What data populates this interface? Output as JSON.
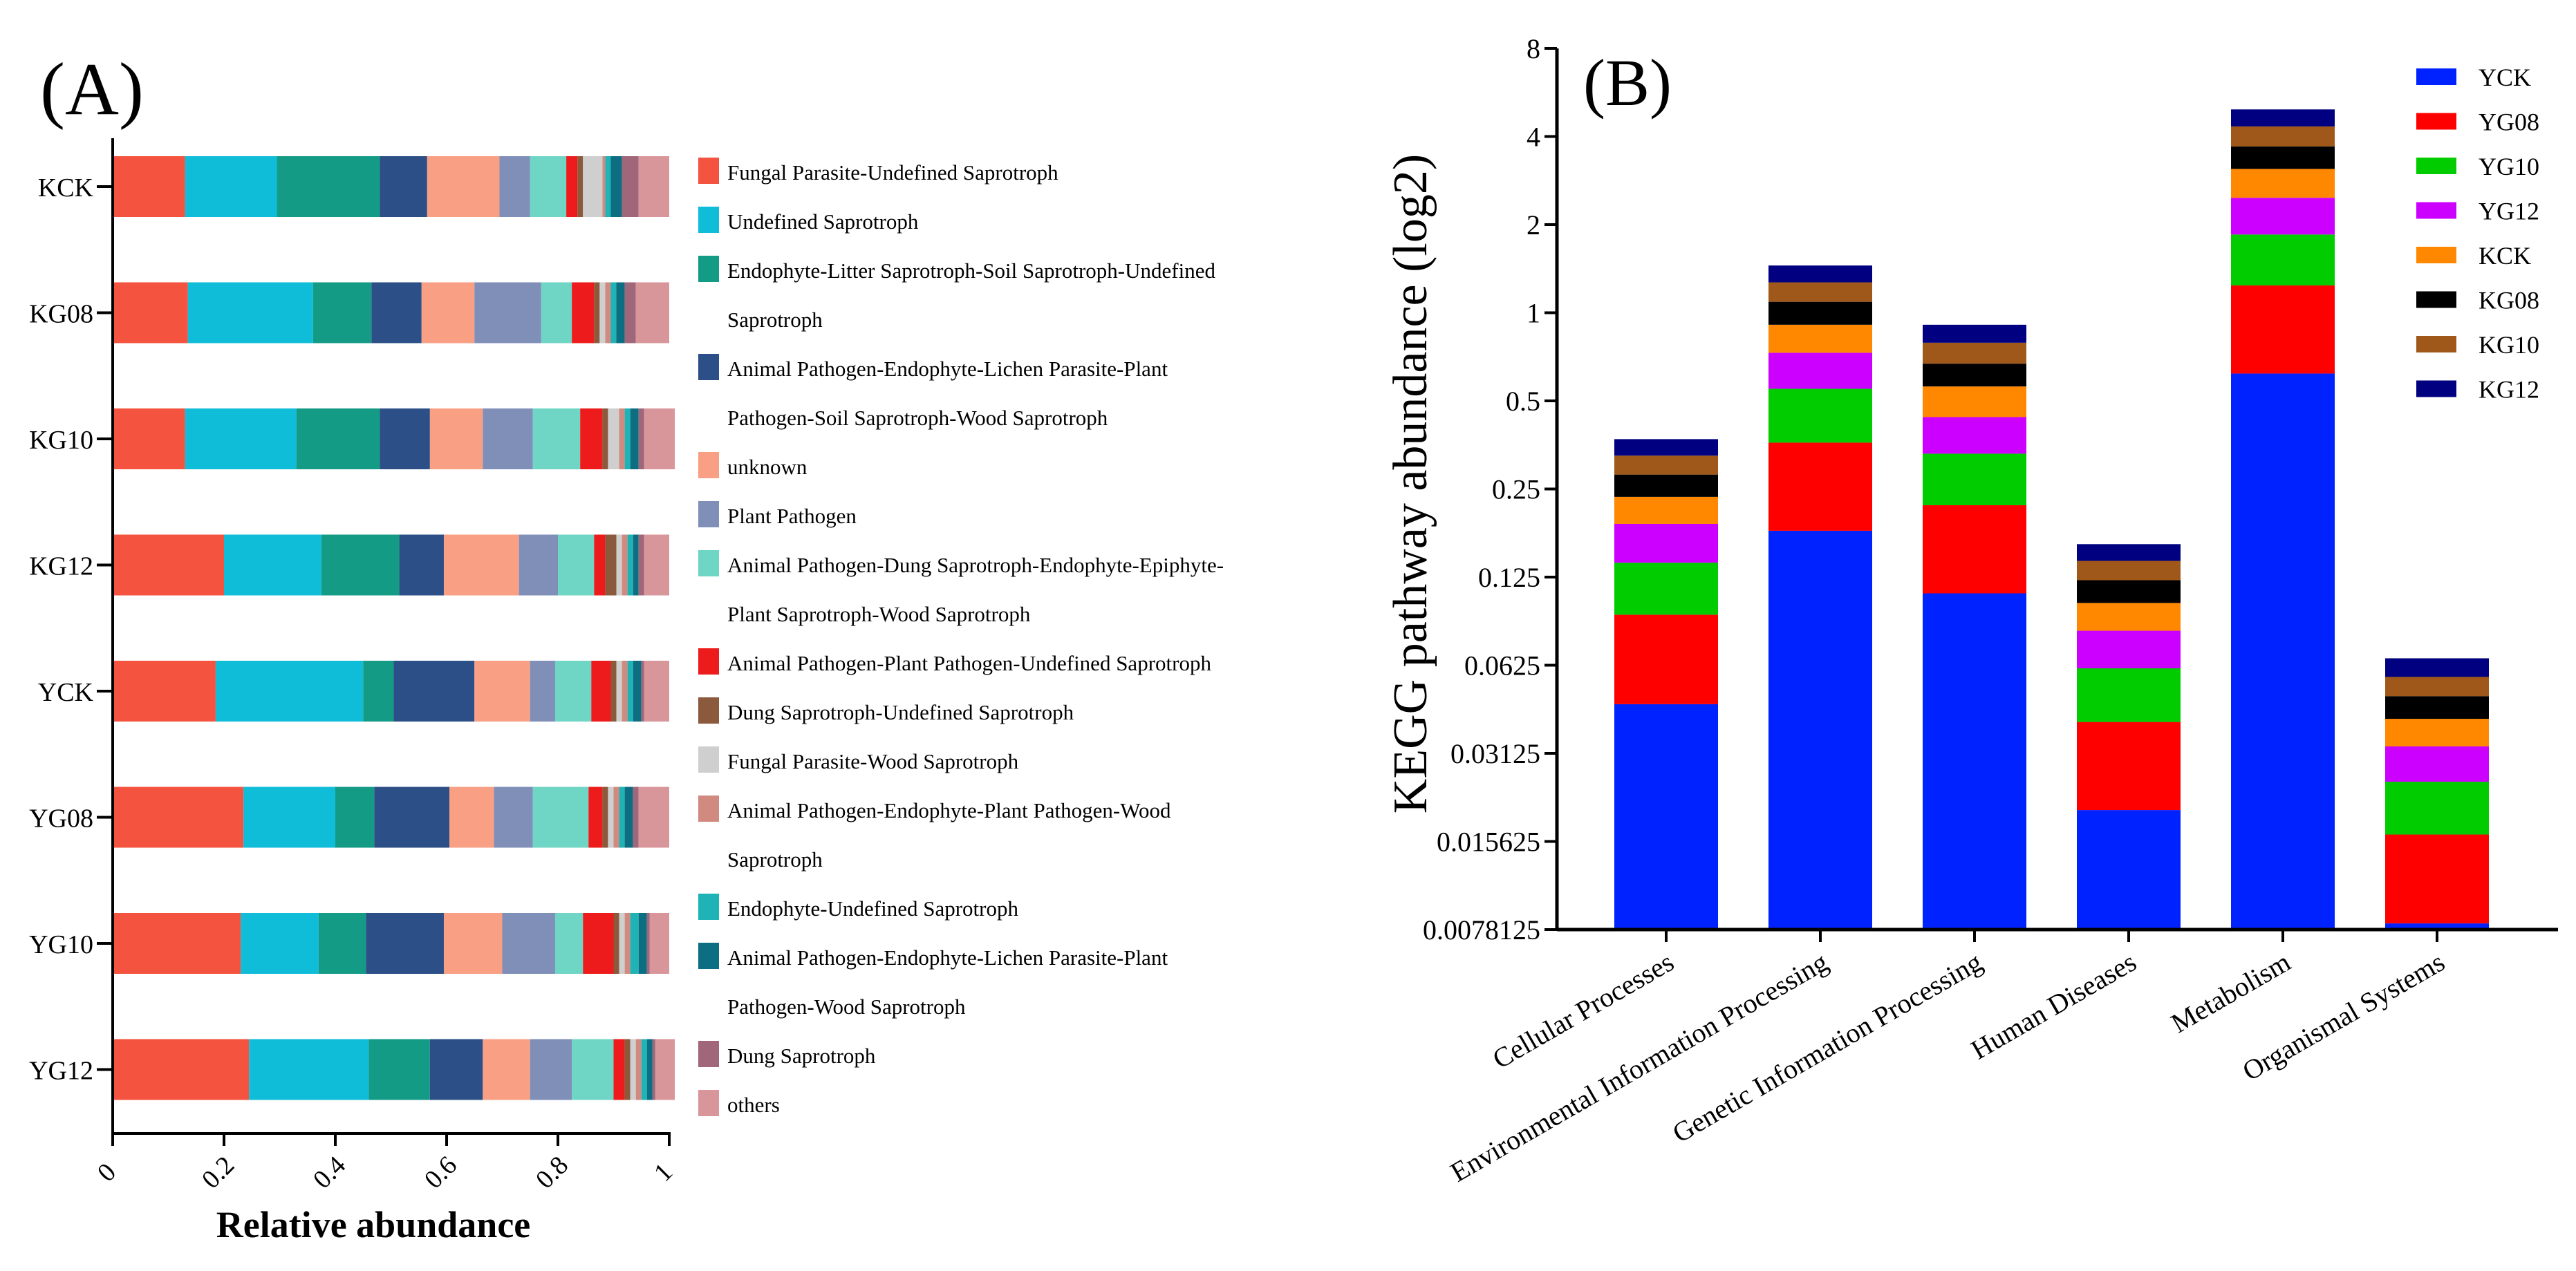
{
  "colors": {
    "text": "#000000",
    "axis": "#000000",
    "guilds": [
      "#f3533f",
      "#10bdd9",
      "#139b86",
      "#2b4f86",
      "#f89f84",
      "#7f8fb8",
      "#6fd5c5",
      "#ed1b1b",
      "#8b5a3c",
      "#cfcfcf",
      "#d18a80",
      "#1fb3b6",
      "#0d6e82",
      "#a0667a",
      "#d9969a"
    ],
    "samples": [
      "#0022ff",
      "#ff0000",
      "#00cc00",
      "#cc00ff",
      "#ff8800",
      "#000000",
      "#a0581a",
      "#000080"
    ]
  },
  "chart_data": [
    {
      "panel_label": "(A)",
      "type": "bar",
      "orientation": "horizontal",
      "stacked": true,
      "xlabel": "Relative abundance",
      "xlim": [
        0,
        1
      ],
      "xticks": [
        "0",
        "0.2",
        "0.4",
        "0.6",
        "0.8",
        "1"
      ],
      "xtick_values": [
        0,
        0.2,
        0.4,
        0.6,
        0.8,
        1.0
      ],
      "categories": [
        "KCK",
        "KG08",
        "KG10",
        "KG12",
        "YCK",
        "YG08",
        "YG10",
        "YG12"
      ],
      "legend_position": "right",
      "legend_lines": [
        [
          "Fungal Parasite-Undefined Saprotroph"
        ],
        [
          "Undefined Saprotroph"
        ],
        [
          "Endophyte-Litter Saprotroph-Soil Saprotroph-Undefined",
          "Saprotroph"
        ],
        [
          "Animal Pathogen-Endophyte-Lichen Parasite-Plant",
          "Pathogen-Soil Saprotroph-Wood Saprotroph"
        ],
        [
          "unknown"
        ],
        [
          "Plant Pathogen"
        ],
        [
          "Animal Pathogen-Dung Saprotroph-Endophyte-Epiphyte-",
          "Plant Saprotroph-Wood Saprotroph"
        ],
        [
          "Animal Pathogen-Plant Pathogen-Undefined Saprotroph"
        ],
        [
          "Dung Saprotroph-Undefined Saprotroph"
        ],
        [
          "Fungal Parasite-Wood Saprotroph"
        ],
        [
          "Animal Pathogen-Endophyte-Plant Pathogen-Wood",
          "Saprotroph"
        ],
        [
          "Endophyte-Undefined Saprotroph"
        ],
        [
          "Animal Pathogen-Endophyte-Lichen Parasite-Plant",
          "Pathogen-Wood Saprotroph"
        ],
        [
          "Dung Saprotroph"
        ],
        [
          "others"
        ]
      ],
      "values": [
        [
          0.13,
          0.165,
          0.185,
          0.085,
          0.13,
          0.055,
          0.065,
          0.02,
          0.01,
          0.035,
          0.005,
          0.01,
          0.02,
          0.03,
          0.055
        ],
        [
          0.135,
          0.225,
          0.105,
          0.09,
          0.095,
          0.12,
          0.055,
          0.04,
          0.01,
          0.01,
          0.01,
          0.01,
          0.015,
          0.02,
          0.06
        ],
        [
          0.13,
          0.2,
          0.15,
          0.09,
          0.095,
          0.09,
          0.085,
          0.04,
          0.01,
          0.02,
          0.01,
          0.01,
          0.015,
          0.01,
          0.055
        ],
        [
          0.2,
          0.175,
          0.14,
          0.08,
          0.135,
          0.07,
          0.065,
          0.02,
          0.02,
          0.01,
          0.01,
          0.01,
          0.01,
          0.01,
          0.045
        ],
        [
          0.185,
          0.265,
          0.055,
          0.145,
          0.1,
          0.045,
          0.065,
          0.035,
          0.01,
          0.01,
          0.01,
          0.01,
          0.015,
          0.005,
          0.045
        ],
        [
          0.235,
          0.165,
          0.07,
          0.135,
          0.08,
          0.07,
          0.1,
          0.025,
          0.01,
          0.01,
          0.01,
          0.01,
          0.015,
          0.01,
          0.055
        ],
        [
          0.23,
          0.14,
          0.085,
          0.14,
          0.105,
          0.095,
          0.05,
          0.055,
          0.01,
          0.01,
          0.01,
          0.015,
          0.015,
          0.005,
          0.035
        ],
        [
          0.245,
          0.215,
          0.11,
          0.095,
          0.085,
          0.075,
          0.075,
          0.02,
          0.01,
          0.01,
          0.01,
          0.01,
          0.01,
          0.005,
          0.035
        ]
      ]
    },
    {
      "panel_label": "(B)",
      "type": "bar",
      "orientation": "vertical",
      "stacked": true,
      "yscale": "log2",
      "ylabel": "KEGG pathway abundance (log2)",
      "ylim": [
        0.0078125,
        8
      ],
      "yticks": [
        "0.0078125",
        "0.015625",
        "0.03125",
        "0.0625",
        "0.125",
        "0.25",
        "0.5",
        "1",
        "2",
        "4",
        "8"
      ],
      "ytick_values": [
        0.0078125,
        0.015625,
        0.03125,
        0.0625,
        0.125,
        0.25,
        0.5,
        1,
        2,
        4,
        8
      ],
      "categories": [
        "Cellular Processes",
        "Environmental Information Processing",
        "Genetic Information Processing",
        "Human Diseases",
        "Metabolism",
        "Organismal Systems"
      ],
      "legend_position": "top-right",
      "series_names": [
        "YCK",
        "YG08",
        "YG10",
        "YG12",
        "KCK",
        "KG08",
        "KG10",
        "KG12"
      ],
      "stack_tops": [
        [
          0.046,
          0.093,
          0.14,
          0.19,
          0.235,
          0.28,
          0.325,
          0.37
        ],
        [
          0.18,
          0.36,
          0.55,
          0.73,
          0.91,
          1.09,
          1.27,
          1.45
        ],
        [
          0.11,
          0.22,
          0.33,
          0.44,
          0.56,
          0.67,
          0.79,
          0.91
        ],
        [
          0.02,
          0.04,
          0.061,
          0.082,
          0.102,
          0.122,
          0.142,
          0.162
        ],
        [
          0.62,
          1.24,
          1.85,
          2.47,
          3.1,
          3.7,
          4.33,
          4.95
        ]
      ],
      "stack_tops_organismal": [
        0.0082,
        0.0165,
        0.025,
        0.033,
        0.041,
        0.049,
        0.057,
        0.066
      ]
    }
  ]
}
